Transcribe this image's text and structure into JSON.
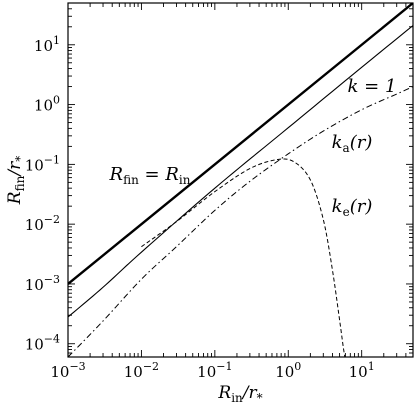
{
  "chart_data": {
    "type": "line",
    "title": "",
    "xlabel": "R_in/r_*",
    "ylabel": "R_fin/r_*",
    "xscale": "log",
    "yscale": "log",
    "xlim": [
      0.001,
      50
    ],
    "ylim": [
      6e-05,
      50
    ],
    "grid": false,
    "x_ticks": [
      {
        "value": 0.001,
        "base": "10",
        "exp": "−3"
      },
      {
        "value": 0.01,
        "base": "10",
        "exp": "−2"
      },
      {
        "value": 0.1,
        "base": "10",
        "exp": "−1"
      },
      {
        "value": 1,
        "base": "10",
        "exp": "0"
      },
      {
        "value": 10,
        "base": "10",
        "exp": "1"
      }
    ],
    "y_ticks": [
      {
        "value": 0.0001,
        "base": "10",
        "exp": "−4"
      },
      {
        "value": 0.001,
        "base": "10",
        "exp": "−3"
      },
      {
        "value": 0.01,
        "base": "10",
        "exp": "−2"
      },
      {
        "value": 0.1,
        "base": "10",
        "exp": "−1"
      },
      {
        "value": 1,
        "base": "10",
        "exp": "0"
      },
      {
        "value": 10,
        "base": "10",
        "exp": "1"
      }
    ],
    "series": [
      {
        "name": "R_fin = R_in",
        "style": "thick-solid",
        "x": [
          0.001,
          50
        ],
        "y": [
          0.001,
          50
        ]
      },
      {
        "name": "k = 1",
        "style": "thin-solid",
        "x": [
          0.001,
          0.003,
          0.01,
          0.1,
          1,
          10,
          50
        ],
        "y": [
          0.00028,
          0.00088,
          0.0034,
          0.04,
          0.41,
          4.2,
          21
        ]
      },
      {
        "name": "k_a(r)",
        "style": "dashdot",
        "x": [
          0.001,
          0.003,
          0.01,
          0.03,
          0.1,
          0.3,
          1,
          3,
          10,
          30,
          50
        ],
        "y": [
          6e-05,
          0.00024,
          0.0012,
          0.0042,
          0.017,
          0.052,
          0.15,
          0.36,
          0.82,
          1.5,
          2.0
        ]
      },
      {
        "name": "k_e(r)",
        "style": "dashed",
        "x": [
          0.01,
          0.03,
          0.1,
          0.3,
          0.7,
          1.2,
          2,
          3,
          4,
          5,
          5.6,
          5.9
        ],
        "y": [
          0.0042,
          0.011,
          0.035,
          0.085,
          0.12,
          0.11,
          0.055,
          0.012,
          0.0017,
          0.00025,
          9e-05,
          6e-05
        ]
      }
    ],
    "annotations": [
      {
        "series": 0,
        "text": "R_fin = R_in"
      },
      {
        "series": 1,
        "text": "k = 1"
      },
      {
        "series": 2,
        "text": "k_a(r)"
      },
      {
        "series": 3,
        "text": "k_e(r)"
      }
    ],
    "axis_labels": {
      "x": {
        "main": "R",
        "sub": "in",
        "mid": "/r",
        "sub2": "*"
      },
      "y": {
        "main": "R",
        "sub": "fin",
        "mid": "/r",
        "sub2": "*"
      }
    },
    "annotation_parts": [
      {
        "main": "R",
        "sub": "fin",
        "rest": " = R",
        "sub2": "in"
      },
      {
        "main": "k = 1",
        "sub": "",
        "rest": "",
        "sub2": ""
      },
      {
        "main": "k",
        "sub": "a",
        "rest": "(r)",
        "sub2": ""
      },
      {
        "main": "k",
        "sub": "e",
        "rest": "(r)",
        "sub2": ""
      }
    ]
  }
}
